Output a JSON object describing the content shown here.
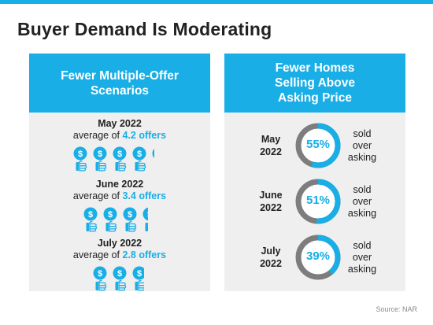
{
  "colors": {
    "accent": "#19aee6",
    "ring_bg": "#7d7d7d",
    "panel_bg": "#efeff0"
  },
  "title": "Buyer Demand Is Moderating",
  "left_panel": {
    "heading": "Fewer Multiple-Offer Scenarios",
    "blocks": [
      {
        "month": "May 2022",
        "avg_prefix": "average of ",
        "avg_value": "4.2 offers",
        "offers": 4.2
      },
      {
        "month": "June 2022",
        "avg_prefix": "average of ",
        "avg_value": "3.4 offers",
        "offers": 3.4
      },
      {
        "month": "July 2022",
        "avg_prefix": "average of ",
        "avg_value": "2.8 offers",
        "offers": 2.8
      }
    ]
  },
  "right_panel": {
    "heading": "Fewer Homes Selling Above Asking Price",
    "rows": [
      {
        "month": "May",
        "year": "2022",
        "pct_label": "55%",
        "pct": 55,
        "label_l1": "sold",
        "label_l2": "over",
        "label_l3": "asking"
      },
      {
        "month": "June",
        "year": "2022",
        "pct_label": "51%",
        "pct": 51,
        "label_l1": "sold",
        "label_l2": "over",
        "label_l3": "asking"
      },
      {
        "month": "July",
        "year": "2022",
        "pct_label": "39%",
        "pct": 39,
        "label_l1": "sold",
        "label_l2": "over",
        "label_l3": "asking"
      }
    ]
  },
  "source": "Source: NAR",
  "icon_name": "hand-holding-dollar-icon"
}
